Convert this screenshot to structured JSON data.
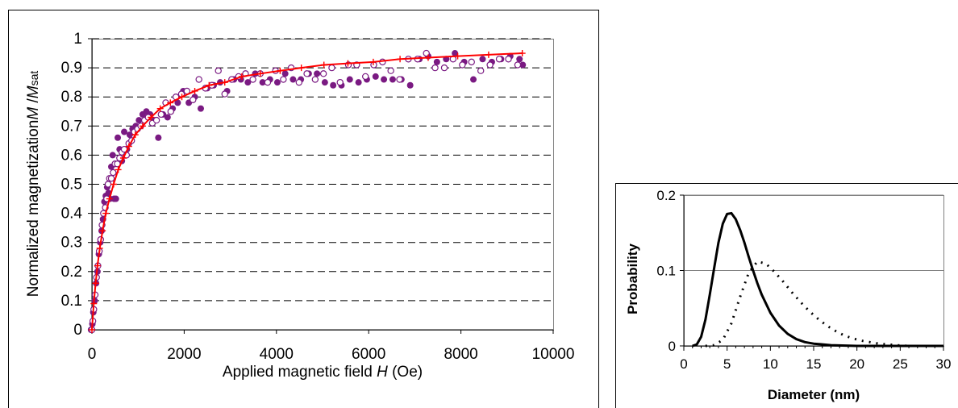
{
  "chart_data": [
    {
      "type": "scatter",
      "title": "",
      "xlabel_parts": [
        "Applied magnetic field ",
        "H",
        " (Oe)"
      ],
      "ylabel_parts": [
        "Normalized magnetization",
        "M",
        " /",
        "M",
        "sat"
      ],
      "xlim": [
        0,
        10000
      ],
      "ylim": [
        0,
        1
      ],
      "xticks": [
        0,
        2000,
        4000,
        6000,
        8000,
        10000
      ],
      "yticks": [
        0,
        0.1,
        0.2,
        0.3,
        0.4,
        0.5,
        0.6,
        0.7,
        0.8,
        0.9,
        1
      ],
      "grid": "horizontal-dashed",
      "legend": "none",
      "colors": {
        "data": "#7a1a82",
        "fit": "#ff0000"
      },
      "series": [
        {
          "style": "filled-circle",
          "points": [
            [
              -20,
              0.0
            ],
            [
              10,
              0.02
            ],
            [
              30,
              0.06
            ],
            [
              60,
              0.1
            ],
            [
              90,
              0.16
            ],
            [
              120,
              0.2
            ],
            [
              150,
              0.26
            ],
            [
              180,
              0.3
            ],
            [
              210,
              0.34
            ],
            [
              240,
              0.38
            ],
            [
              270,
              0.44
            ],
            [
              300,
              0.46
            ],
            [
              330,
              0.49
            ],
            [
              360,
              0.47
            ],
            [
              390,
              0.45
            ],
            [
              420,
              0.56
            ],
            [
              450,
              0.6
            ],
            [
              480,
              0.45
            ],
            [
              520,
              0.45
            ],
            [
              560,
              0.66
            ],
            [
              600,
              0.62
            ],
            [
              650,
              0.58
            ],
            [
              700,
              0.68
            ],
            [
              760,
              0.62
            ],
            [
              820,
              0.67
            ],
            [
              880,
              0.69
            ],
            [
              950,
              0.7
            ],
            [
              1020,
              0.72
            ],
            [
              1100,
              0.74
            ],
            [
              1180,
              0.75
            ],
            [
              1260,
              0.74
            ],
            [
              1350,
              0.72
            ],
            [
              1440,
              0.66
            ],
            [
              1540,
              0.74
            ],
            [
              1640,
              0.73
            ],
            [
              1750,
              0.76
            ],
            [
              1860,
              0.78
            ],
            [
              1980,
              0.82
            ],
            [
              2100,
              0.78
            ],
            [
              2230,
              0.8
            ],
            [
              2360,
              0.76
            ],
            [
              2500,
              0.83
            ],
            [
              2640,
              0.84
            ],
            [
              2780,
              0.85
            ],
            [
              2930,
              0.82
            ],
            [
              3080,
              0.86
            ],
            [
              3230,
              0.86
            ],
            [
              3380,
              0.85
            ],
            [
              3540,
              0.88
            ],
            [
              3700,
              0.85
            ],
            [
              3860,
              0.86
            ],
            [
              4020,
              0.85
            ],
            [
              4190,
              0.88
            ],
            [
              4360,
              0.86
            ],
            [
              4530,
              0.86
            ],
            [
              4700,
              0.88
            ],
            [
              4880,
              0.88
            ],
            [
              5050,
              0.85
            ],
            [
              5230,
              0.84
            ],
            [
              5410,
              0.84
            ],
            [
              5590,
              0.86
            ],
            [
              5780,
              0.85
            ],
            [
              5960,
              0.86
            ],
            [
              6150,
              0.87
            ],
            [
              6330,
              0.86
            ],
            [
              6520,
              0.86
            ],
            [
              6710,
              0.86
            ],
            [
              6900,
              0.84
            ],
            [
              7100,
              0.93
            ],
            [
              7290,
              0.94
            ],
            [
              7480,
              0.92
            ],
            [
              7680,
              0.93
            ],
            [
              7870,
              0.95
            ],
            [
              8070,
              0.92
            ],
            [
              8270,
              0.86
            ],
            [
              8470,
              0.93
            ],
            [
              8670,
              0.92
            ],
            [
              8870,
              0.93
            ],
            [
              9070,
              0.94
            ],
            [
              9270,
              0.93
            ],
            [
              9340,
              0.91
            ]
          ]
        },
        {
          "style": "open-circle",
          "points": [
            [
              0,
              0.0
            ],
            [
              20,
              0.03
            ],
            [
              40,
              0.07
            ],
            [
              70,
              0.12
            ],
            [
              100,
              0.18
            ],
            [
              130,
              0.22
            ],
            [
              160,
              0.27
            ],
            [
              190,
              0.31
            ],
            [
              220,
              0.36
            ],
            [
              250,
              0.4
            ],
            [
              290,
              0.42
            ],
            [
              320,
              0.45
            ],
            [
              350,
              0.5
            ],
            [
              380,
              0.52
            ],
            [
              420,
              0.52
            ],
            [
              460,
              0.54
            ],
            [
              500,
              0.57
            ],
            [
              550,
              0.57
            ],
            [
              600,
              0.59
            ],
            [
              650,
              0.61
            ],
            [
              700,
              0.62
            ],
            [
              750,
              0.6
            ],
            [
              800,
              0.64
            ],
            [
              860,
              0.65
            ],
            [
              920,
              0.68
            ],
            [
              990,
              0.69
            ],
            [
              1060,
              0.7
            ],
            [
              1140,
              0.72
            ],
            [
              1220,
              0.73
            ],
            [
              1310,
              0.71
            ],
            [
              1400,
              0.72
            ],
            [
              1500,
              0.74
            ],
            [
              1600,
              0.78
            ],
            [
              1710,
              0.75
            ],
            [
              1820,
              0.8
            ],
            [
              1940,
              0.81
            ],
            [
              2060,
              0.82
            ],
            [
              2190,
              0.79
            ],
            [
              2320,
              0.86
            ],
            [
              2460,
              0.83
            ],
            [
              2600,
              0.84
            ],
            [
              2740,
              0.89
            ],
            [
              2880,
              0.81
            ],
            [
              3030,
              0.86
            ],
            [
              3180,
              0.87
            ],
            [
              3330,
              0.88
            ],
            [
              3490,
              0.86
            ],
            [
              3650,
              0.88
            ],
            [
              3810,
              0.85
            ],
            [
              3980,
              0.89
            ],
            [
              4150,
              0.86
            ],
            [
              4320,
              0.9
            ],
            [
              4490,
              0.85
            ],
            [
              4660,
              0.88
            ],
            [
              4840,
              0.86
            ],
            [
              5020,
              0.88
            ],
            [
              5200,
              0.9
            ],
            [
              5380,
              0.85
            ],
            [
              5560,
              0.91
            ],
            [
              5740,
              0.91
            ],
            [
              5930,
              0.87
            ],
            [
              6110,
              0.91
            ],
            [
              6300,
              0.92
            ],
            [
              6480,
              0.89
            ],
            [
              6670,
              0.86
            ],
            [
              6860,
              0.93
            ],
            [
              7060,
              0.93
            ],
            [
              7250,
              0.95
            ],
            [
              7440,
              0.9
            ],
            [
              7640,
              0.9
            ],
            [
              7830,
              0.93
            ],
            [
              8030,
              0.91
            ],
            [
              8230,
              0.92
            ],
            [
              8430,
              0.89
            ],
            [
              8630,
              0.91
            ],
            [
              8830,
              0.93
            ],
            [
              9030,
              0.93
            ],
            [
              9230,
              0.91
            ]
          ]
        },
        {
          "style": "line-plus",
          "points": [
            [
              0,
              0.0
            ],
            [
              40,
              0.09
            ],
            [
              80,
              0.16
            ],
            [
              120,
              0.22
            ],
            [
              170,
              0.28
            ],
            [
              230,
              0.34
            ],
            [
              300,
              0.4
            ],
            [
              380,
              0.45
            ],
            [
              470,
              0.5
            ],
            [
              570,
              0.55
            ],
            [
              680,
              0.59
            ],
            [
              800,
              0.63
            ],
            [
              940,
              0.67
            ],
            [
              1100,
              0.7
            ],
            [
              1280,
              0.73
            ],
            [
              1480,
              0.76
            ],
            [
              1700,
              0.78
            ],
            [
              1950,
              0.8
            ],
            [
              2230,
              0.82
            ],
            [
              2540,
              0.84
            ],
            [
              2880,
              0.85
            ],
            [
              3250,
              0.87
            ],
            [
              3650,
              0.88
            ],
            [
              4080,
              0.89
            ],
            [
              4540,
              0.9
            ],
            [
              5030,
              0.91
            ],
            [
              5550,
              0.915
            ],
            [
              6100,
              0.92
            ],
            [
              6680,
              0.93
            ],
            [
              7290,
              0.935
            ],
            [
              7930,
              0.94
            ],
            [
              8600,
              0.945
            ],
            [
              9330,
              0.95
            ]
          ]
        }
      ]
    },
    {
      "type": "line",
      "title": "",
      "xlabel": "Diameter (nm)",
      "ylabel": "Probability",
      "xlim": [
        0,
        30
      ],
      "ylim": [
        0,
        0.2
      ],
      "xticks": [
        0,
        5,
        10,
        15,
        20,
        25,
        30
      ],
      "yticks": [
        0,
        0.1,
        0.2
      ],
      "grid": "horizontal-solid",
      "legend": "none",
      "series": [
        {
          "style": "solid",
          "points": [
            [
              1.0,
              0.0
            ],
            [
              1.5,
              0.002
            ],
            [
              2.0,
              0.012
            ],
            [
              2.5,
              0.035
            ],
            [
              3.0,
              0.068
            ],
            [
              3.5,
              0.103
            ],
            [
              4.0,
              0.137
            ],
            [
              4.5,
              0.162
            ],
            [
              5.0,
              0.175
            ],
            [
              5.5,
              0.176
            ],
            [
              6.0,
              0.168
            ],
            [
              6.5,
              0.154
            ],
            [
              7.0,
              0.137
            ],
            [
              7.5,
              0.118
            ],
            [
              8.0,
              0.1
            ],
            [
              8.5,
              0.083
            ],
            [
              9.0,
              0.068
            ],
            [
              10.0,
              0.044
            ],
            [
              11.0,
              0.027
            ],
            [
              12.0,
              0.016
            ],
            [
              13.0,
              0.009
            ],
            [
              14.0,
              0.005
            ],
            [
              15.0,
              0.003
            ],
            [
              17.0,
              0.001
            ],
            [
              20.0,
              0.0
            ],
            [
              25.0,
              0.0
            ],
            [
              30.0,
              0.0
            ]
          ]
        },
        {
          "style": "dotted",
          "points": [
            [
              2.5,
              0.0
            ],
            [
              3.5,
              0.001
            ],
            [
              4.5,
              0.008
            ],
            [
              5.5,
              0.03
            ],
            [
              6.5,
              0.065
            ],
            [
              7.5,
              0.097
            ],
            [
              8.5,
              0.112
            ],
            [
              9.5,
              0.109
            ],
            [
              10.5,
              0.098
            ],
            [
              11.5,
              0.085
            ],
            [
              12.5,
              0.071
            ],
            [
              13.5,
              0.058
            ],
            [
              14.5,
              0.046
            ],
            [
              15.5,
              0.036
            ],
            [
              16.5,
              0.027
            ],
            [
              17.5,
              0.02
            ],
            [
              18.5,
              0.014
            ],
            [
              19.5,
              0.01
            ],
            [
              20.5,
              0.007
            ],
            [
              21.5,
              0.005
            ],
            [
              22.5,
              0.003
            ],
            [
              23.5,
              0.002
            ],
            [
              24.5,
              0.001
            ],
            [
              26.0,
              0.0
            ],
            [
              30.0,
              0.0
            ]
          ]
        }
      ]
    }
  ]
}
